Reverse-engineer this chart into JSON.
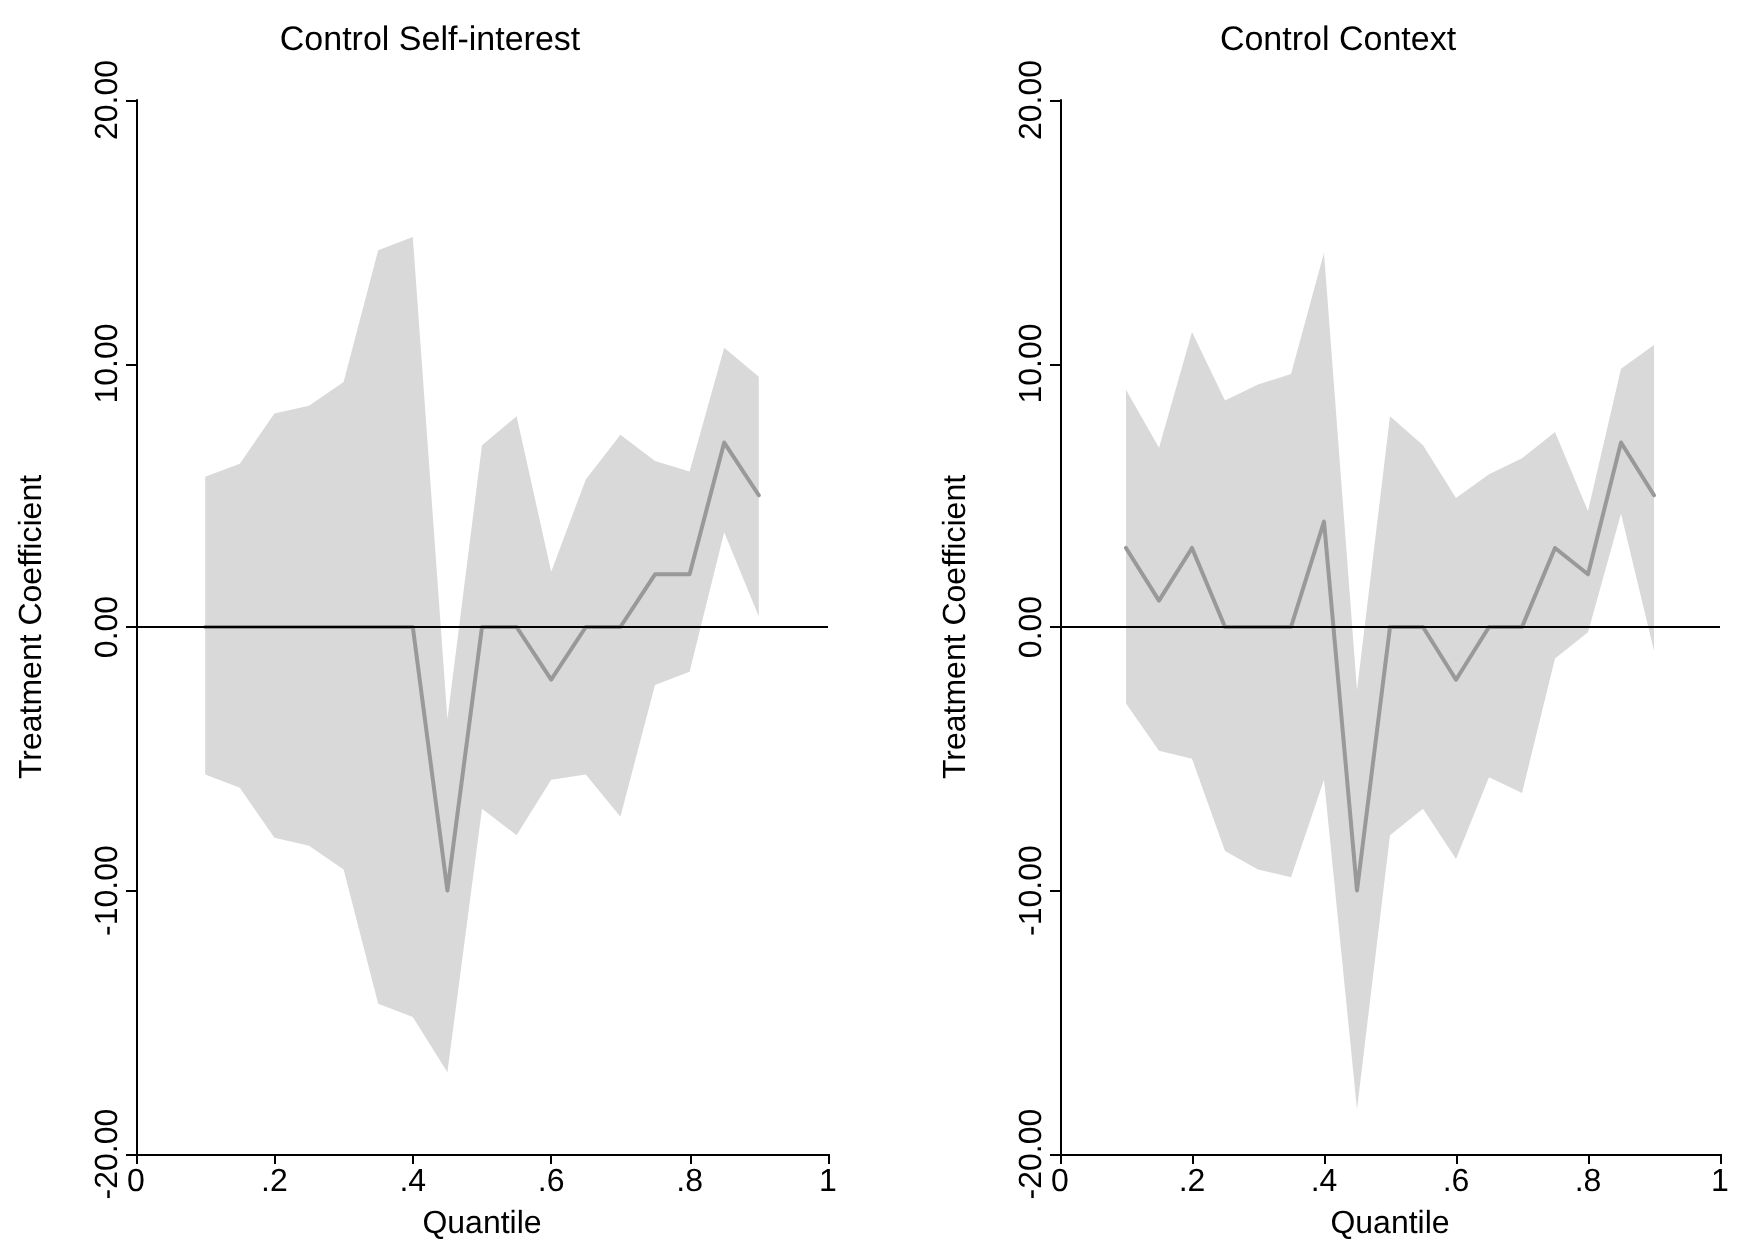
{
  "chart_data": [
    {
      "type": "line",
      "title": "Control Self-interest",
      "xlabel": "Quantile",
      "ylabel": "Treatment Coefficient",
      "x": [
        0.1,
        0.15,
        0.2,
        0.25,
        0.3,
        0.35,
        0.4,
        0.45,
        0.5,
        0.55,
        0.6,
        0.65,
        0.7,
        0.75,
        0.8,
        0.85,
        0.9
      ],
      "series": [
        {
          "color": "#999999",
          "values": [
            0,
            0,
            0,
            0,
            0,
            0,
            0,
            -10,
            0,
            0,
            -2,
            0,
            0,
            2,
            2,
            7,
            5
          ],
          "lower": [
            -5.6,
            -6.1,
            -8.0,
            -8.3,
            -9.2,
            -14.3,
            -14.8,
            -16.9,
            -6.9,
            -7.9,
            -5.8,
            -5.6,
            -7.2,
            -2.2,
            -1.7,
            3.6,
            0.4
          ],
          "upper": [
            5.7,
            6.2,
            8.1,
            8.4,
            9.3,
            14.3,
            14.8,
            -3.5,
            6.9,
            8.0,
            2.1,
            5.6,
            7.3,
            6.3,
            5.9,
            10.6,
            9.5
          ]
        }
      ],
      "xlim": [
        0,
        1
      ],
      "xticks": [
        {
          "value": 0,
          "label": "0"
        },
        {
          "value": 0.2,
          "label": ".2"
        },
        {
          "value": 0.4,
          "label": ".4"
        },
        {
          "value": 0.6,
          "label": ".6"
        },
        {
          "value": 0.8,
          "label": ".8"
        },
        {
          "value": 1,
          "label": "1"
        }
      ],
      "ylim": [
        -20,
        20
      ],
      "yticks": [
        {
          "value": -20,
          "label": "-20.00"
        },
        {
          "value": -10,
          "label": "-10.00"
        },
        {
          "value": 0,
          "label": "0.00"
        },
        {
          "value": 10,
          "label": "10.00"
        },
        {
          "value": 20,
          "label": "20.00"
        }
      ],
      "ref_lines": [
        {
          "axis": "y",
          "value": 0,
          "color": "#000000"
        }
      ],
      "grid": false,
      "marker": "none",
      "line_style": "solid"
    },
    {
      "type": "line",
      "title": "Control Context",
      "xlabel": "Quantile",
      "ylabel": "Treatment Coefficient",
      "x": [
        0.1,
        0.15,
        0.2,
        0.25,
        0.3,
        0.35,
        0.4,
        0.45,
        0.5,
        0.55,
        0.6,
        0.65,
        0.7,
        0.75,
        0.8,
        0.85,
        0.9
      ],
      "series": [
        {
          "color": "#999999",
          "values": [
            3,
            1,
            3,
            0,
            0,
            0,
            4,
            -10,
            0,
            0,
            -2,
            0,
            0,
            3,
            2,
            7,
            5
          ],
          "lower": [
            -2.9,
            -4.7,
            -5.0,
            -8.5,
            -9.2,
            -9.5,
            -5.8,
            -18.3,
            -7.9,
            -6.9,
            -8.8,
            -5.7,
            -6.3,
            -1.2,
            -0.2,
            4.3,
            -0.9
          ],
          "upper": [
            9.0,
            6.8,
            11.2,
            8.6,
            9.2,
            9.6,
            14.2,
            -2.4,
            8.0,
            6.9,
            4.9,
            5.8,
            6.4,
            7.4,
            4.4,
            9.8,
            10.7
          ]
        }
      ],
      "xlim": [
        0,
        1
      ],
      "xticks": [
        {
          "value": 0,
          "label": "0"
        },
        {
          "value": 0.2,
          "label": ".2"
        },
        {
          "value": 0.4,
          "label": ".4"
        },
        {
          "value": 0.6,
          "label": ".6"
        },
        {
          "value": 0.8,
          "label": ".8"
        },
        {
          "value": 1,
          "label": "1"
        }
      ],
      "ylim": [
        -20,
        20
      ],
      "yticks": [
        {
          "value": -20,
          "label": "-20.00"
        },
        {
          "value": -10,
          "label": "-10.00"
        },
        {
          "value": 0,
          "label": "0.00"
        },
        {
          "value": 10,
          "label": "10.00"
        },
        {
          "value": 20,
          "label": "20.00"
        }
      ],
      "ref_lines": [
        {
          "axis": "y",
          "value": 0,
          "color": "#000000"
        }
      ],
      "grid": false,
      "marker": "none",
      "line_style": "solid"
    }
  ]
}
